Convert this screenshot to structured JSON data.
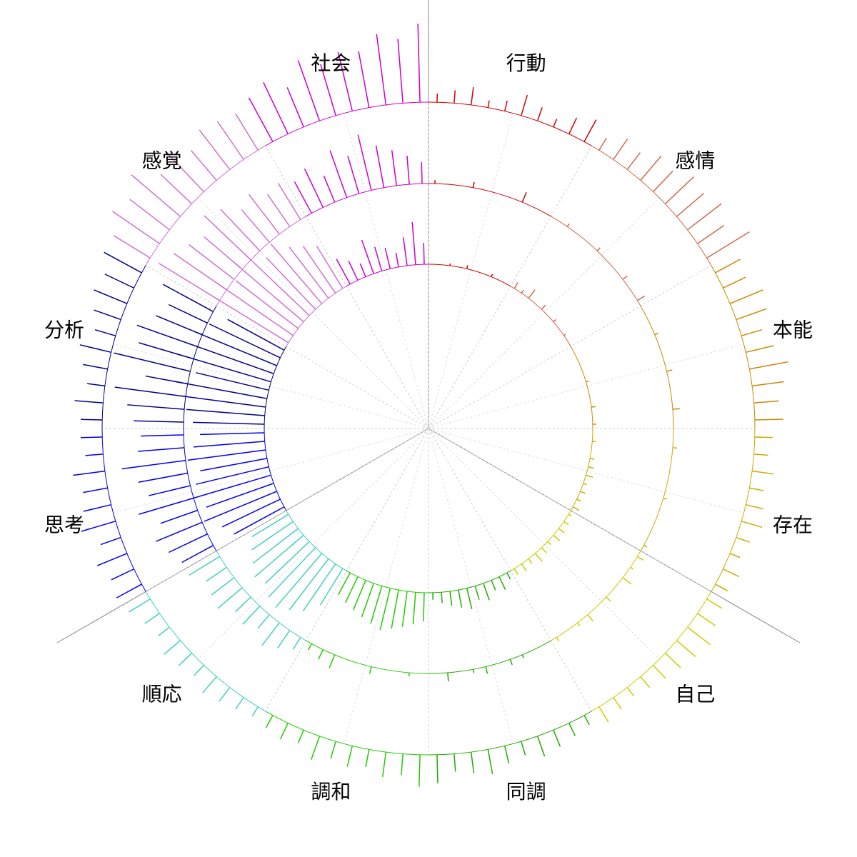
{
  "chart_data": {
    "type": "radial-bar",
    "categories": [
      "行動",
      "感情",
      "本能",
      "存在",
      "自己",
      "同調",
      "調和",
      "順応",
      "思考",
      "分析",
      "感覚",
      "社会"
    ],
    "colors": [
      "#d00000",
      "#d2694b",
      "#cc8800",
      "#ccaa00",
      "#cccc00",
      "#22aa00",
      "#22cc00",
      "#40d0c0",
      "#0000ee",
      "#000088",
      "#d070d0",
      "#cc00cc"
    ],
    "series": [
      {
        "values": [
          [
            0,
            0,
            3,
            0,
            5,
            0,
            0,
            4,
            0,
            0
          ],
          [
            10,
            5,
            15,
            0,
            8,
            0,
            5,
            0,
            3,
            0
          ],
          [
            0,
            0,
            0,
            0,
            4,
            0,
            0,
            6,
            0,
            5
          ],
          [
            0,
            5,
            0,
            6,
            8,
            10,
            5,
            8,
            6,
            10
          ],
          [
            5,
            8,
            10,
            12,
            6,
            10,
            15,
            8,
            12,
            10
          ],
          [
            10,
            20,
            15,
            25,
            20,
            30,
            25,
            20,
            15,
            10
          ],
          [
            40,
            45,
            50,
            55,
            60,
            55,
            50,
            45,
            40,
            35
          ],
          [
            60,
            80,
            90,
            100,
            95,
            85,
            90,
            80,
            70,
            60
          ],
          [
            80,
            90,
            110,
            100,
            120,
            105,
            95,
            110,
            100,
            90
          ],
          [
            100,
            110,
            120,
            130,
            105,
            140,
            115,
            125,
            110,
            90
          ],
          [
            120,
            130,
            110,
            140,
            125,
            100,
            110,
            90,
            80,
            70
          ],
          [
            40,
            30,
            20,
            50,
            35,
            30,
            20,
            40,
            60,
            30
          ]
        ]
      },
      {
        "values": [
          [
            5,
            0,
            0,
            8,
            0,
            0,
            0,
            15,
            0,
            0
          ],
          [
            0,
            5,
            0,
            0,
            6,
            0,
            0,
            8,
            0,
            12
          ],
          [
            0,
            0,
            5,
            0,
            0,
            8,
            0,
            0,
            10,
            0
          ],
          [
            0,
            6,
            0,
            0,
            0,
            5,
            0,
            0,
            0,
            5
          ],
          [
            10,
            5,
            15,
            0,
            8,
            0,
            12,
            5,
            0,
            6
          ],
          [
            0,
            0,
            5,
            8,
            0,
            10,
            5,
            0,
            12,
            0
          ],
          [
            0,
            5,
            0,
            0,
            10,
            0,
            0,
            20,
            15,
            10
          ],
          [
            20,
            30,
            40,
            25,
            35,
            30,
            45,
            40,
            35,
            50
          ],
          [
            50,
            60,
            70,
            55,
            80,
            60,
            70,
            90,
            65,
            60
          ],
          [
            70,
            80,
            100,
            60,
            110,
            80,
            90,
            70,
            60,
            80
          ],
          [
            100,
            90,
            80,
            70,
            90,
            80,
            60,
            70,
            55,
            60
          ],
          [
            50,
            60,
            40,
            70,
            55,
            80,
            60,
            50,
            40,
            30
          ]
        ]
      },
      {
        "values": [
          [
            12,
            18,
            25,
            10,
            15,
            30,
            20,
            12,
            25,
            35
          ],
          [
            20,
            35,
            30,
            45,
            40,
            55,
            50,
            60,
            45,
            70
          ],
          [
            40,
            35,
            50,
            45,
            30,
            40,
            55,
            45,
            35,
            40
          ],
          [
            25,
            20,
            30,
            20,
            25,
            30,
            20,
            15,
            25,
            20
          ],
          [
            25,
            30,
            40,
            35,
            30,
            25,
            20,
            15,
            20,
            25
          ],
          [
            15,
            20,
            25,
            30,
            20,
            25,
            35,
            30,
            25,
            40
          ],
          [
            45,
            30,
            35,
            25,
            30,
            25,
            35,
            20,
            25,
            20
          ],
          [
            15,
            20,
            25,
            30,
            20,
            25,
            30,
            20,
            25,
            35
          ],
          [
            40,
            35,
            45,
            30,
            50,
            40,
            35,
            45,
            25,
            30
          ],
          [
            30,
            40,
            25,
            35,
            45,
            30,
            40,
            50,
            45,
            60
          ],
          [
            60,
            80,
            70,
            90,
            60,
            75,
            55,
            70,
            65,
            60
          ],
          [
            70,
            80,
            60,
            90,
            75,
            85,
            80,
            100,
            90,
            110
          ]
        ]
      }
    ]
  }
}
